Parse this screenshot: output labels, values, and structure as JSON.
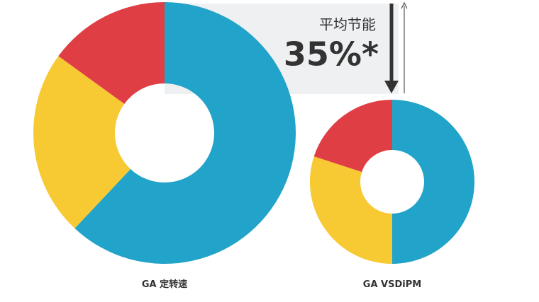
{
  "callout": {
    "title": "平均节能",
    "text": "35%*"
  },
  "chart_data": [
    {
      "type": "donut",
      "label": "GA 定转速",
      "values": [
        62,
        23,
        15
      ],
      "colors": [
        "#22a3c9",
        "#f7c932",
        "#df3e45"
      ]
    },
    {
      "type": "donut",
      "label": "GA VSDiPM",
      "values": [
        50,
        30,
        20
      ],
      "colors": [
        "#22a3c9",
        "#f7c932",
        "#df3e45"
      ]
    }
  ]
}
